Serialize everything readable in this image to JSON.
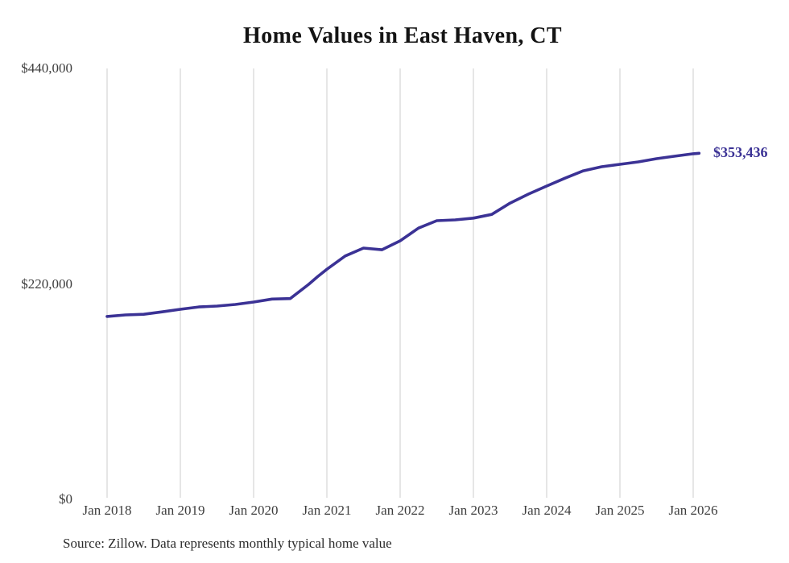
{
  "title": "Home Values in East Haven, CT",
  "source_note": "Source: Zillow. Data represents monthly typical home value",
  "colors": {
    "background": "#ffffff",
    "line": "#3b3295",
    "grid": "#cccccc",
    "title_text": "#131313",
    "axis_text": "#3d3d3d",
    "note_text": "#2b2b2b",
    "end_label_text": "#3b3295"
  },
  "chart_data": {
    "type": "line",
    "title": "Home Values in East Haven, CT",
    "ylim": [
      0,
      440000
    ],
    "y_ticks": [
      440000,
      220000,
      0
    ],
    "y_tick_labels": [
      "$440,000",
      "$220,000",
      "$0"
    ],
    "x_gridline_years": [
      2018,
      2019,
      2020,
      2021,
      2022,
      2023,
      2024,
      2025,
      2026
    ],
    "x_tick_labels": [
      "Jan 2018",
      "Jan 2019",
      "Jan 2020",
      "Jan 2021",
      "Jan 2022",
      "Jan 2023",
      "Jan 2024",
      "Jan 2025",
      "Jan 2026"
    ],
    "grid": "vertical-only",
    "legend": "none",
    "end_value": 353436,
    "end_value_label": "$353,436",
    "series": [
      {
        "name": "Monthly typical home value",
        "points": [
          [
            2018.0,
            186800
          ],
          [
            2018.25,
            188300
          ],
          [
            2018.5,
            189000
          ],
          [
            2018.75,
            191500
          ],
          [
            2019.0,
            194100
          ],
          [
            2019.25,
            196500
          ],
          [
            2019.5,
            197400
          ],
          [
            2019.75,
            199000
          ],
          [
            2020.0,
            201500
          ],
          [
            2020.25,
            204500
          ],
          [
            2020.5,
            205000
          ],
          [
            2020.75,
            219500
          ],
          [
            2020.875,
            227500
          ],
          [
            2021.0,
            235000
          ],
          [
            2021.25,
            248500
          ],
          [
            2021.5,
            256600
          ],
          [
            2021.75,
            254900
          ],
          [
            2022.0,
            264000
          ],
          [
            2022.25,
            277000
          ],
          [
            2022.5,
            284600
          ],
          [
            2022.75,
            285400
          ],
          [
            2023.0,
            287200
          ],
          [
            2023.25,
            291000
          ],
          [
            2023.5,
            302500
          ],
          [
            2023.75,
            311700
          ],
          [
            2024.0,
            319900
          ],
          [
            2024.25,
            328000
          ],
          [
            2024.5,
            335500
          ],
          [
            2024.75,
            339700
          ],
          [
            2025.0,
            342100
          ],
          [
            2025.25,
            344600
          ],
          [
            2025.5,
            347900
          ],
          [
            2025.75,
            350400
          ],
          [
            2026.0,
            352900
          ],
          [
            2026.08,
            353436
          ]
        ]
      }
    ]
  }
}
